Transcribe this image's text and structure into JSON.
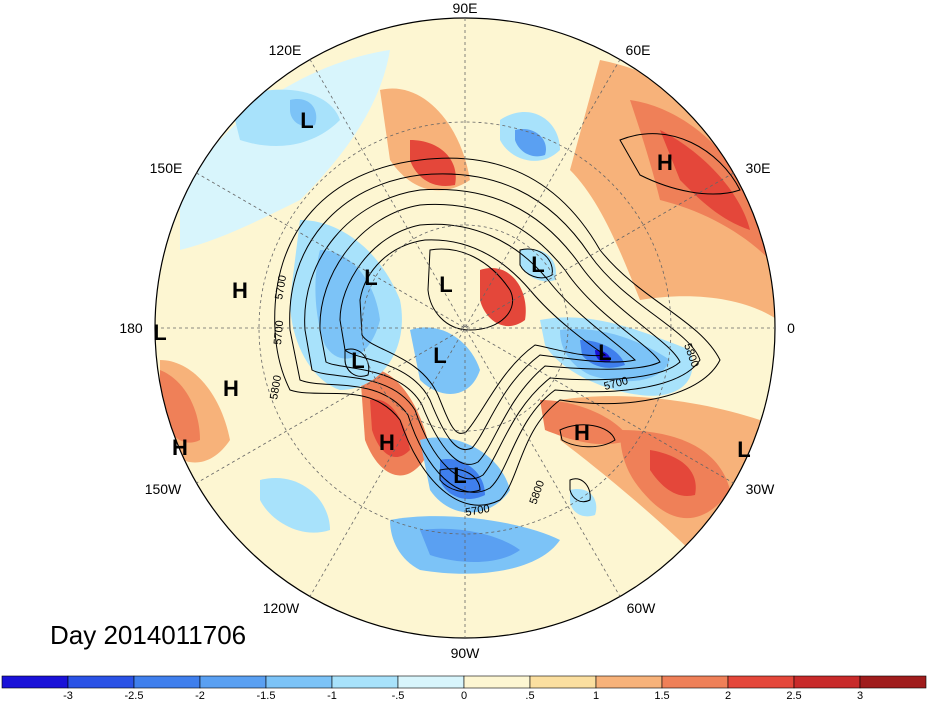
{
  "title": "Day 2014011706",
  "longitude_labels": [
    "90E",
    "60E",
    "30E",
    "0",
    "30W",
    "60W",
    "90W",
    "120W",
    "150W",
    "180",
    "150E",
    "120E"
  ],
  "pressure_systems": [
    {
      "type": "L"
    },
    {
      "type": "H"
    },
    {
      "type": "L"
    },
    {
      "type": "L"
    },
    {
      "type": "L"
    },
    {
      "type": "L"
    },
    {
      "type": "L"
    },
    {
      "type": "L"
    },
    {
      "type": "H"
    },
    {
      "type": "H"
    },
    {
      "type": "H"
    },
    {
      "type": "L"
    },
    {
      "type": "H"
    },
    {
      "type": "H"
    },
    {
      "type": "L"
    },
    {
      "type": "L"
    }
  ],
  "contour_labels": [
    "5700",
    "5700",
    "5800",
    "5800",
    "5700",
    "5800",
    "5700"
  ],
  "colorbar": {
    "ticks": [
      "-3",
      "-2.5",
      "-2",
      "-1.5",
      "-1",
      "-.5",
      "0",
      ".5",
      "1",
      "1.5",
      "2",
      "2.5",
      "3"
    ],
    "colors": [
      "#1a12d8",
      "#2a52e6",
      "#3f7fed",
      "#5aa0f2",
      "#7cc3f7",
      "#a8e2fb",
      "#d8f5fc",
      "#fdf6d2",
      "#fbdfa0",
      "#f7b27a",
      "#ef8058",
      "#e4473a",
      "#c82a2a",
      "#a01c1c"
    ]
  }
}
